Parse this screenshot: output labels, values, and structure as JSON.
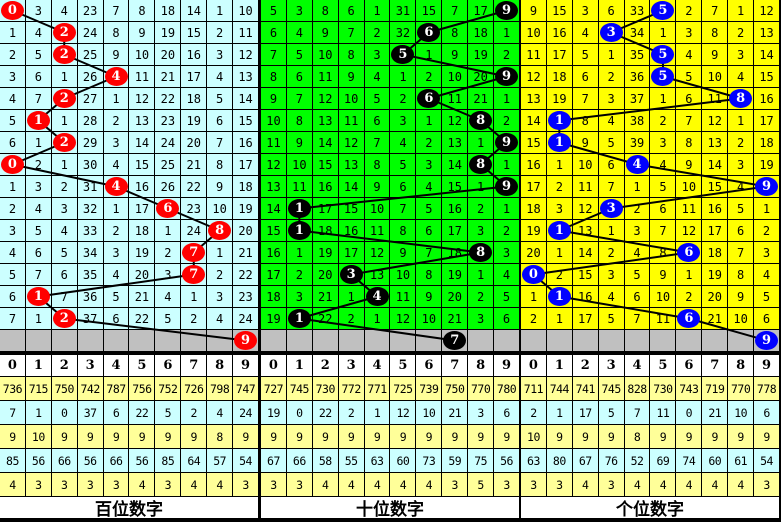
{
  "header_digits": [
    "0",
    "1",
    "2",
    "3",
    "4",
    "5",
    "6",
    "7",
    "8",
    "9"
  ],
  "panels": [
    {
      "label": "百位数字",
      "cell_color": "#ccffff",
      "ball_color": "#ff0000",
      "rows": [
        {
          "hit": 0,
          "cells": [
            "0",
            "3",
            "4",
            "23",
            "7",
            "8",
            "18",
            "14",
            "1",
            "10"
          ]
        },
        {
          "hit": 2,
          "cells": [
            "1",
            "4",
            "2",
            "24",
            "8",
            "9",
            "19",
            "15",
            "2",
            "11"
          ]
        },
        {
          "hit": 2,
          "cells": [
            "2",
            "5",
            "2",
            "25",
            "9",
            "10",
            "20",
            "16",
            "3",
            "12"
          ]
        },
        {
          "hit": 4,
          "cells": [
            "3",
            "6",
            "1",
            "26",
            "4",
            "11",
            "21",
            "17",
            "4",
            "13"
          ]
        },
        {
          "hit": 2,
          "cells": [
            "4",
            "7",
            "2",
            "27",
            "1",
            "12",
            "22",
            "18",
            "5",
            "14"
          ]
        },
        {
          "hit": 1,
          "cells": [
            "5",
            "1",
            "1",
            "28",
            "2",
            "13",
            "23",
            "19",
            "6",
            "15"
          ]
        },
        {
          "hit": 2,
          "cells": [
            "6",
            "1",
            "2",
            "29",
            "3",
            "14",
            "24",
            "20",
            "7",
            "16"
          ]
        },
        {
          "hit": 0,
          "cells": [
            "0",
            "2",
            "1",
            "30",
            "4",
            "15",
            "25",
            "21",
            "8",
            "17"
          ]
        },
        {
          "hit": 4,
          "cells": [
            "1",
            "3",
            "2",
            "31",
            "4",
            "16",
            "26",
            "22",
            "9",
            "18"
          ]
        },
        {
          "hit": 6,
          "cells": [
            "2",
            "4",
            "3",
            "32",
            "1",
            "17",
            "6",
            "23",
            "10",
            "19"
          ]
        },
        {
          "hit": 8,
          "cells": [
            "3",
            "5",
            "4",
            "33",
            "2",
            "18",
            "1",
            "24",
            "8",
            "20"
          ]
        },
        {
          "hit": 7,
          "cells": [
            "4",
            "6",
            "5",
            "34",
            "3",
            "19",
            "2",
            "7",
            "1",
            "21"
          ]
        },
        {
          "hit": 7,
          "cells": [
            "5",
            "7",
            "6",
            "35",
            "4",
            "20",
            "3",
            "7",
            "2",
            "22"
          ]
        },
        {
          "hit": 1,
          "cells": [
            "6",
            "1",
            "7",
            "36",
            "5",
            "21",
            "4",
            "1",
            "3",
            "23"
          ]
        },
        {
          "hit": 2,
          "cells": [
            "7",
            "1",
            "2",
            "37",
            "6",
            "22",
            "5",
            "2",
            "4",
            "24"
          ]
        }
      ],
      "next_hit": 9,
      "stats": [
        [
          "736",
          "715",
          "750",
          "742",
          "787",
          "756",
          "752",
          "726",
          "798",
          "747"
        ],
        [
          "7",
          "1",
          "0",
          "37",
          "6",
          "22",
          "5",
          "2",
          "4",
          "24"
        ],
        [
          "9",
          "10",
          "9",
          "9",
          "9",
          "9",
          "9",
          "9",
          "8",
          "9"
        ],
        [
          "85",
          "56",
          "66",
          "56",
          "66",
          "56",
          "85",
          "64",
          "57",
          "54"
        ],
        [
          "4",
          "3",
          "3",
          "3",
          "3",
          "4",
          "3",
          "4",
          "4",
          "3"
        ]
      ]
    },
    {
      "label": "十位数字",
      "cell_color": "#00ff00",
      "ball_color": "#000000",
      "rows": [
        {
          "hit": 9,
          "cells": [
            "5",
            "3",
            "8",
            "6",
            "1",
            "31",
            "15",
            "7",
            "17",
            "9"
          ]
        },
        {
          "hit": 6,
          "cells": [
            "6",
            "4",
            "9",
            "7",
            "2",
            "32",
            "6",
            "8",
            "18",
            "1"
          ]
        },
        {
          "hit": 5,
          "cells": [
            "7",
            "5",
            "10",
            "8",
            "3",
            "5",
            "1",
            "9",
            "19",
            "2"
          ]
        },
        {
          "hit": 9,
          "cells": [
            "8",
            "6",
            "11",
            "9",
            "4",
            "1",
            "2",
            "10",
            "20",
            "9"
          ]
        },
        {
          "hit": 6,
          "cells": [
            "9",
            "7",
            "12",
            "10",
            "5",
            "2",
            "6",
            "11",
            "21",
            "1"
          ]
        },
        {
          "hit": 8,
          "cells": [
            "10",
            "8",
            "13",
            "11",
            "6",
            "3",
            "1",
            "12",
            "8",
            "2"
          ]
        },
        {
          "hit": 9,
          "cells": [
            "11",
            "9",
            "14",
            "12",
            "7",
            "4",
            "2",
            "13",
            "1",
            "9"
          ]
        },
        {
          "hit": 8,
          "cells": [
            "12",
            "10",
            "15",
            "13",
            "8",
            "5",
            "3",
            "14",
            "8",
            "1"
          ]
        },
        {
          "hit": 9,
          "cells": [
            "13",
            "11",
            "16",
            "14",
            "9",
            "6",
            "4",
            "15",
            "1",
            "9"
          ]
        },
        {
          "hit": 1,
          "cells": [
            "14",
            "1",
            "17",
            "15",
            "10",
            "7",
            "5",
            "16",
            "2",
            "1"
          ]
        },
        {
          "hit": 1,
          "cells": [
            "15",
            "1",
            "18",
            "16",
            "11",
            "8",
            "6",
            "17",
            "3",
            "2"
          ]
        },
        {
          "hit": 8,
          "cells": [
            "16",
            "1",
            "19",
            "17",
            "12",
            "9",
            "7",
            "18",
            "8",
            "3"
          ]
        },
        {
          "hit": 3,
          "cells": [
            "17",
            "2",
            "20",
            "3",
            "13",
            "10",
            "8",
            "19",
            "1",
            "4"
          ]
        },
        {
          "hit": 4,
          "cells": [
            "18",
            "3",
            "21",
            "1",
            "4",
            "11",
            "9",
            "20",
            "2",
            "5"
          ]
        },
        {
          "hit": 1,
          "cells": [
            "19",
            "1",
            "22",
            "2",
            "1",
            "12",
            "10",
            "21",
            "3",
            "6"
          ]
        }
      ],
      "next_hit": 7,
      "stats": [
        [
          "727",
          "745",
          "730",
          "772",
          "771",
          "725",
          "739",
          "750",
          "770",
          "780"
        ],
        [
          "19",
          "0",
          "22",
          "2",
          "1",
          "12",
          "10",
          "21",
          "3",
          "6"
        ],
        [
          "9",
          "9",
          "9",
          "9",
          "9",
          "9",
          "9",
          "9",
          "9",
          "9"
        ],
        [
          "67",
          "66",
          "58",
          "55",
          "63",
          "60",
          "73",
          "59",
          "75",
          "56"
        ],
        [
          "3",
          "3",
          "4",
          "4",
          "4",
          "4",
          "4",
          "3",
          "5",
          "3"
        ]
      ]
    },
    {
      "label": "个位数字",
      "cell_color": "#ffff00",
      "ball_color": "#0000ff",
      "rows": [
        {
          "hit": 5,
          "cells": [
            "9",
            "15",
            "3",
            "6",
            "33",
            "5",
            "2",
            "7",
            "1",
            "12"
          ]
        },
        {
          "hit": 3,
          "cells": [
            "10",
            "16",
            "4",
            "3",
            "34",
            "1",
            "3",
            "8",
            "2",
            "13"
          ]
        },
        {
          "hit": 5,
          "cells": [
            "11",
            "17",
            "5",
            "1",
            "35",
            "5",
            "4",
            "9",
            "3",
            "14"
          ]
        },
        {
          "hit": 5,
          "cells": [
            "12",
            "18",
            "6",
            "2",
            "36",
            "5",
            "5",
            "10",
            "4",
            "15"
          ]
        },
        {
          "hit": 8,
          "cells": [
            "13",
            "19",
            "7",
            "3",
            "37",
            "1",
            "6",
            "11",
            "8",
            "16"
          ]
        },
        {
          "hit": 1,
          "cells": [
            "14",
            "1",
            "8",
            "4",
            "38",
            "2",
            "7",
            "12",
            "1",
            "17"
          ]
        },
        {
          "hit": 1,
          "cells": [
            "15",
            "1",
            "9",
            "5",
            "39",
            "3",
            "8",
            "13",
            "2",
            "18"
          ]
        },
        {
          "hit": 4,
          "cells": [
            "16",
            "1",
            "10",
            "6",
            "4",
            "4",
            "9",
            "14",
            "3",
            "19"
          ]
        },
        {
          "hit": 9,
          "cells": [
            "17",
            "2",
            "11",
            "7",
            "1",
            "5",
            "10",
            "15",
            "4",
            "9"
          ]
        },
        {
          "hit": 3,
          "cells": [
            "18",
            "3",
            "12",
            "3",
            "2",
            "6",
            "11",
            "16",
            "5",
            "1"
          ]
        },
        {
          "hit": 1,
          "cells": [
            "19",
            "1",
            "13",
            "1",
            "3",
            "7",
            "12",
            "17",
            "6",
            "2"
          ]
        },
        {
          "hit": 6,
          "cells": [
            "20",
            "1",
            "14",
            "2",
            "4",
            "8",
            "6",
            "18",
            "7",
            "3"
          ]
        },
        {
          "hit": 0,
          "cells": [
            "0",
            "2",
            "15",
            "3",
            "5",
            "9",
            "1",
            "19",
            "8",
            "4"
          ]
        },
        {
          "hit": 1,
          "cells": [
            "1",
            "1",
            "16",
            "4",
            "6",
            "10",
            "2",
            "20",
            "9",
            "5"
          ]
        },
        {
          "hit": 6,
          "cells": [
            "2",
            "1",
            "17",
            "5",
            "7",
            "11",
            "6",
            "21",
            "10",
            "6"
          ]
        }
      ],
      "next_hit": 9,
      "stats": [
        [
          "711",
          "744",
          "741",
          "745",
          "828",
          "730",
          "743",
          "719",
          "770",
          "778"
        ],
        [
          "2",
          "1",
          "17",
          "5",
          "7",
          "11",
          "0",
          "21",
          "10",
          "6"
        ],
        [
          "10",
          "9",
          "9",
          "9",
          "8",
          "9",
          "9",
          "9",
          "9",
          "9"
        ],
        [
          "63",
          "80",
          "67",
          "76",
          "52",
          "69",
          "74",
          "60",
          "61",
          "54"
        ],
        [
          "3",
          "3",
          "4",
          "3",
          "4",
          "4",
          "4",
          "4",
          "4",
          "3"
        ]
      ]
    }
  ]
}
